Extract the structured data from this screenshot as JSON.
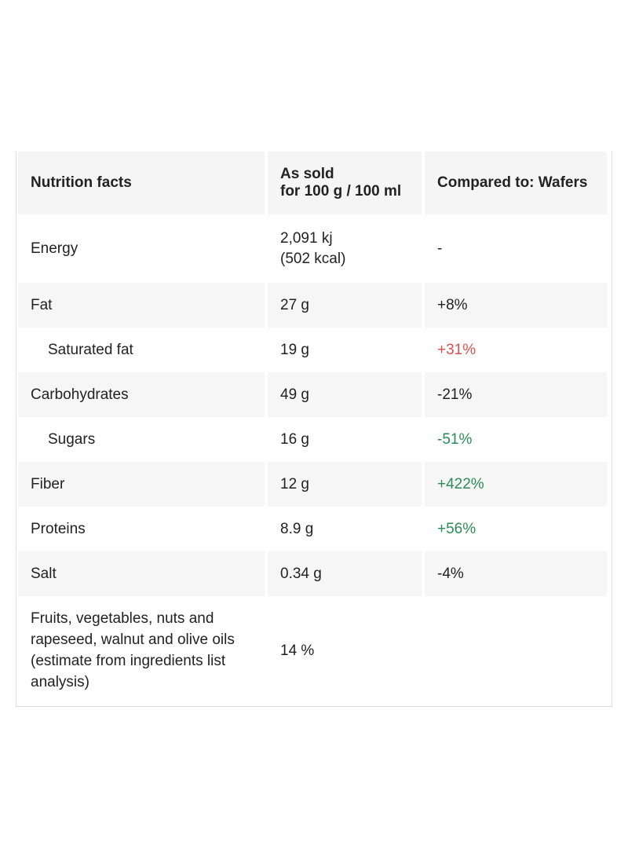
{
  "header": {
    "col1": "Nutrition facts",
    "col2_line1": "As sold",
    "col2_line2": "for 100 g / 100 ml",
    "col3": "Compared to: Wafers"
  },
  "rows": [
    {
      "name": "Energy",
      "value_line1": "2,091 kj",
      "value_line2": "(502 kcal)",
      "compare": "-",
      "compare_color": "neutral"
    },
    {
      "name": "Fat",
      "value": "27 g",
      "compare": "+8%",
      "compare_color": "neutral"
    },
    {
      "name": "Saturated fat",
      "value": "19 g",
      "compare": "+31%",
      "compare_color": "red"
    },
    {
      "name": "Carbohydrates",
      "value": "49 g",
      "compare": "-21%",
      "compare_color": "neutral"
    },
    {
      "name": "Sugars",
      "value": "16 g",
      "compare": "-51%",
      "compare_color": "green"
    },
    {
      "name": "Fiber",
      "value": "12 g",
      "compare": "+422%",
      "compare_color": "green"
    },
    {
      "name": "Proteins",
      "value": "8.9 g",
      "compare": "+56%",
      "compare_color": "green"
    },
    {
      "name": "Salt",
      "value": "0.34 g",
      "compare": "-4%",
      "compare_color": "neutral"
    },
    {
      "name": "Fruits, vegetables, nuts and rapeseed, walnut and olive oils (estimate from ingredients list analysis)",
      "value": "14 %",
      "compare": ""
    }
  ],
  "colors": {
    "red": "#d9534f",
    "green": "#2e8b57",
    "stripe": "#f6f6f6"
  }
}
